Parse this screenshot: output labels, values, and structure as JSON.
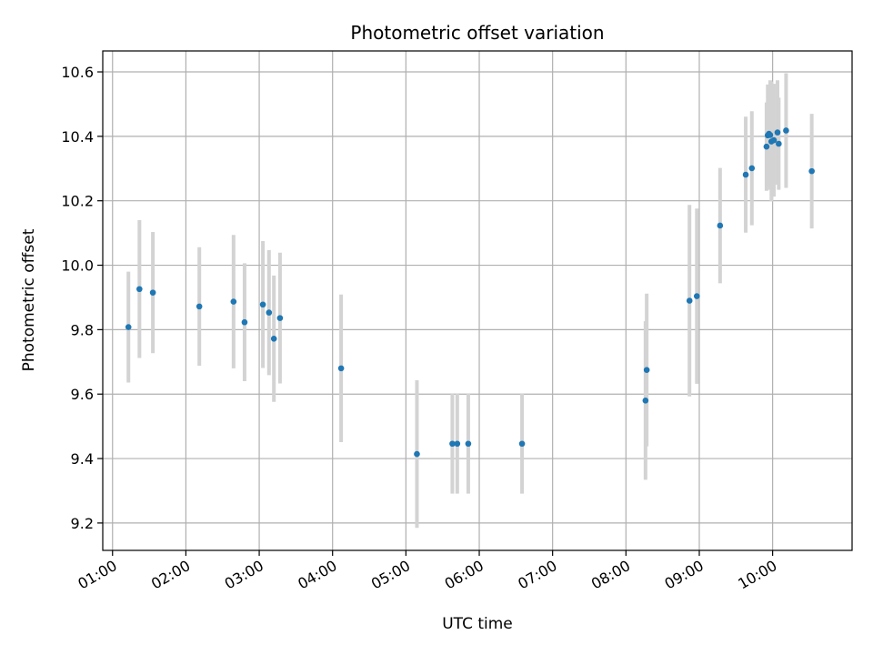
{
  "chart_data": {
    "type": "scatter",
    "title": "Photometric offset variation",
    "xlabel": "UTC time",
    "ylabel": "Photometric offset",
    "grid": true,
    "legend": "none",
    "xlim": [
      "00:52",
      "11:05"
    ],
    "ylim": [
      9.115,
      10.665
    ],
    "x_ticks": [
      "01:00",
      "02:00",
      "03:00",
      "04:00",
      "05:00",
      "06:00",
      "07:00",
      "08:00",
      "09:00",
      "10:00"
    ],
    "y_ticks": [
      "9.2",
      "9.4",
      "9.6",
      "9.8",
      "10.0",
      "10.2",
      "10.4",
      "10.6"
    ],
    "colors": {
      "points": "#1f77b4",
      "error_bars": "#d3d3d3",
      "grid": "#b0b0b0"
    },
    "series": [
      {
        "points": [
          {
            "x": "01:13",
            "y": 9.808,
            "err": 0.172
          },
          {
            "x": "01:22",
            "y": 9.926,
            "err": 0.214
          },
          {
            "x": "01:33",
            "y": 9.915,
            "err": 0.188
          },
          {
            "x": "02:11",
            "y": 9.872,
            "err": 0.184
          },
          {
            "x": "02:39",
            "y": 9.887,
            "err": 0.207
          },
          {
            "x": "02:48",
            "y": 9.823,
            "err": 0.183
          },
          {
            "x": "03:03",
            "y": 9.878,
            "err": 0.197
          },
          {
            "x": "03:08",
            "y": 9.853,
            "err": 0.194
          },
          {
            "x": "03:12",
            "y": 9.772,
            "err": 0.196
          },
          {
            "x": "03:17",
            "y": 9.836,
            "err": 0.203
          },
          {
            "x": "04:07",
            "y": 9.68,
            "err": 0.229
          },
          {
            "x": "05:09",
            "y": 9.414,
            "err": 0.229
          },
          {
            "x": "05:38",
            "y": 9.446,
            "err": 0.155
          },
          {
            "x": "05:42",
            "y": 9.446,
            "err": 0.155
          },
          {
            "x": "05:51",
            "y": 9.446,
            "err": 0.155
          },
          {
            "x": "06:35",
            "y": 9.446,
            "err": 0.155
          },
          {
            "x": "08:16",
            "y": 9.58,
            "err": 0.246
          },
          {
            "x": "08:17",
            "y": 9.675,
            "err": 0.237
          },
          {
            "x": "08:52",
            "y": 9.89,
            "err": 0.297
          },
          {
            "x": "08:58",
            "y": 9.904,
            "err": 0.272
          },
          {
            "x": "09:17",
            "y": 10.123,
            "err": 0.179
          },
          {
            "x": "09:38",
            "y": 10.281,
            "err": 0.18
          },
          {
            "x": "09:43",
            "y": 10.301,
            "err": 0.177
          },
          {
            "x": "09:55",
            "y": 10.368,
            "err": 0.137
          },
          {
            "x": "09:56",
            "y": 10.403,
            "err": 0.158
          },
          {
            "x": "09:57",
            "y": 10.408,
            "err": 0.151
          },
          {
            "x": "09:58",
            "y": 10.404,
            "err": 0.17
          },
          {
            "x": "09:59",
            "y": 10.384,
            "err": 0.186
          },
          {
            "x": "10:01",
            "y": 10.388,
            "err": 0.175
          },
          {
            "x": "10:04",
            "y": 10.412,
            "err": 0.162
          },
          {
            "x": "10:05",
            "y": 10.377,
            "err": 0.143
          },
          {
            "x": "10:11",
            "y": 10.418,
            "err": 0.178
          },
          {
            "x": "10:32",
            "y": 10.292,
            "err": 0.178
          }
        ]
      }
    ]
  }
}
